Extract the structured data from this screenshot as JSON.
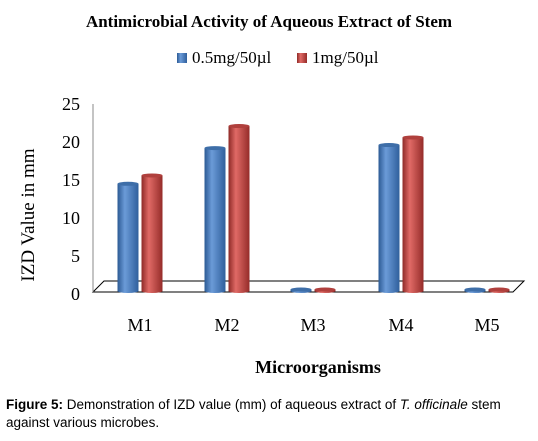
{
  "chart_data": {
    "type": "bar",
    "title": "Antimicrobial Activity of Aqueous Extract of Stem",
    "xlabel": "Microorganisms",
    "ylabel": "IZD  Value in mm",
    "categories": [
      "M1",
      "M2",
      "M3",
      "M4",
      "M5"
    ],
    "ylim": [
      0,
      25
    ],
    "yticks": [
      0,
      5,
      10,
      15,
      20,
      25
    ],
    "legend_position": "top",
    "grid": false,
    "series": [
      {
        "name": "0.5mg/50µl",
        "color": "#4f81bd",
        "values": [
          14.5,
          19.2,
          0,
          19.6,
          0
        ]
      },
      {
        "name": "1mg/50µl",
        "color": "#c0504d",
        "values": [
          15.6,
          22.1,
          0,
          20.6,
          0
        ]
      }
    ]
  },
  "caption": {
    "label": "Figure 5:",
    "text_before": " Demonstration of IZD value (mm) of aqueous extract of ",
    "species": "T. officinale",
    "text_after": " stem against various microbes."
  }
}
